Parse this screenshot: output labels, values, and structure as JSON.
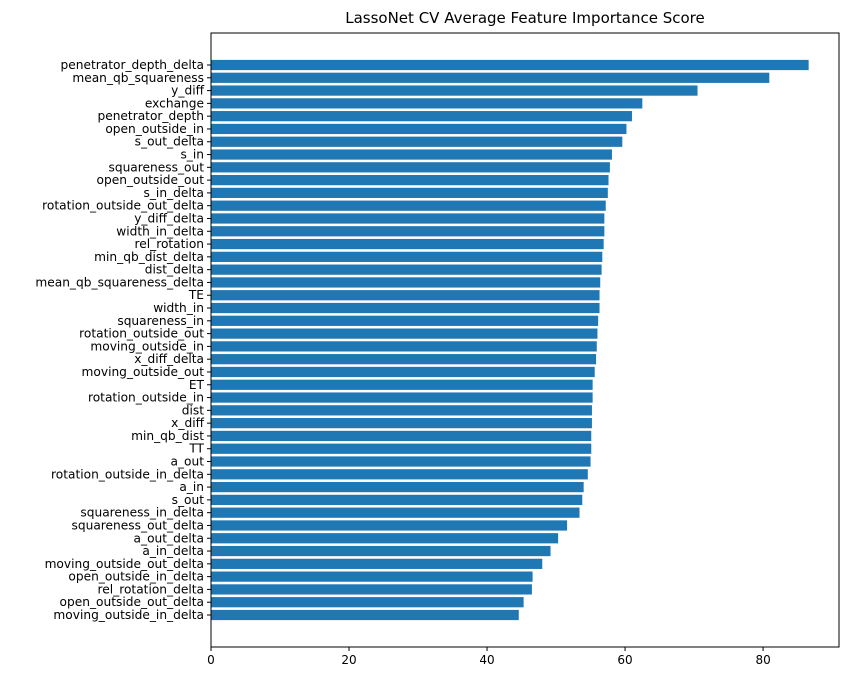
{
  "chart_data": {
    "type": "bar",
    "orientation": "horizontal",
    "title": "LassoNet CV Average Feature Importance Score",
    "xlabel": "",
    "ylabel": "",
    "xlim": [
      0,
      91
    ],
    "xticks": [
      0,
      20,
      40,
      60,
      80
    ],
    "bar_color": "#1f77b4",
    "grid": false,
    "categories": [
      "penetrator_depth_delta",
      "mean_qb_squareness",
      "y_diff",
      "exchange",
      "penetrator_depth",
      "open_outside_in",
      "s_out_delta",
      "s_in",
      "squareness_out",
      "open_outside_out",
      "s_in_delta",
      "rotation_outside_out_delta",
      "y_diff_delta",
      "width_in_delta",
      "rel_rotation",
      "min_qb_dist_delta",
      "dist_delta",
      "mean_qb_squareness_delta",
      "TE",
      "width_in",
      "squareness_in",
      "rotation_outside_out",
      "moving_outside_in",
      "x_diff_delta",
      "moving_outside_out",
      "ET",
      "rotation_outside_in",
      "dist",
      "x_diff",
      "min_qb_dist",
      "TT",
      "a_out",
      "rotation_outside_in_delta",
      "a_in",
      "s_out",
      "squareness_in_delta",
      "squareness_out_delta",
      "a_out_delta",
      "a_in_delta",
      "moving_outside_out_delta",
      "open_outside_in_delta",
      "rel_rotation_delta",
      "open_outside_out_delta",
      "moving_outside_in_delta"
    ],
    "values": [
      86.6,
      80.9,
      70.5,
      62.5,
      61.0,
      60.2,
      59.6,
      58.1,
      57.8,
      57.6,
      57.5,
      57.2,
      57.0,
      57.0,
      56.9,
      56.7,
      56.6,
      56.4,
      56.3,
      56.3,
      56.1,
      56.0,
      55.9,
      55.8,
      55.6,
      55.3,
      55.3,
      55.2,
      55.2,
      55.1,
      55.1,
      55.0,
      54.6,
      54.0,
      53.8,
      53.4,
      51.6,
      50.3,
      49.2,
      48.0,
      46.6,
      46.5,
      45.3,
      44.6
    ]
  }
}
